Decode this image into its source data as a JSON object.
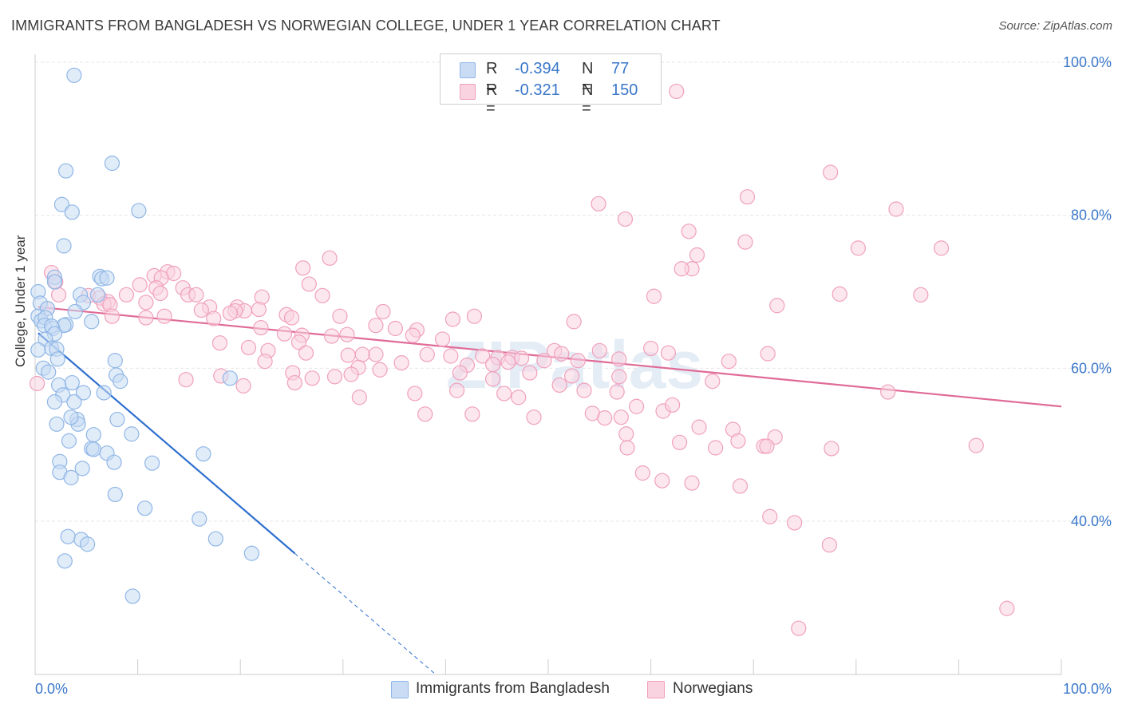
{
  "header": {
    "title": "IMMIGRANTS FROM BANGLADESH VS NORWEGIAN COLLEGE, UNDER 1 YEAR CORRELATION CHART",
    "source": "Source: ZipAtlas.com"
  },
  "legend": {
    "rows": [
      {
        "r_label": "R =",
        "r_value": "-0.394",
        "n_label": "N =",
        "n_value": "77",
        "color": "#8fb6e6",
        "fill": "#c9dcf4"
      },
      {
        "r_label": "R =",
        "r_value": "-0.321",
        "n_label": "N =",
        "n_value": "150",
        "color": "#f0a0bc",
        "fill": "#f9d3e0"
      }
    ],
    "bottom": [
      {
        "label": "Immigrants from Bangladesh",
        "color": "#8fb6e6",
        "fill": "#c9dcf4"
      },
      {
        "label": "Norwegians",
        "color": "#f0a0bc",
        "fill": "#f9d3e0"
      }
    ]
  },
  "watermark": "ZIPatlas",
  "chart_data": {
    "type": "scatter",
    "title": "IMMIGRANTS FROM BANGLADESH VS NORWEGIAN COLLEGE, UNDER 1 YEAR CORRELATION CHART",
    "xlabel": "",
    "ylabel": "College, Under 1 year",
    "xlim": [
      0,
      100
    ],
    "ylim": [
      20,
      100
    ],
    "x_ticks": [
      "0.0%",
      "100.0%"
    ],
    "y_ticks": [
      "100.0%",
      "80.0%",
      "60.0%",
      "40.0%"
    ],
    "y_tick_values": [
      100,
      80,
      60,
      40
    ],
    "grid": true,
    "legend_position": "top-center",
    "series": [
      {
        "name": "Immigrants from Bangladesh",
        "stroke": "#8fb6e6",
        "fill": "#c9dcf4",
        "line_color": "#2e6fd0",
        "trend": {
          "x0": 0.3,
          "y0": 64.6,
          "x1": 25.3,
          "y1": 35.8,
          "dash_x1": 39.0,
          "dash_y1": 20.0
        },
        "points": [
          [
            3.8,
            98.3
          ],
          [
            3.0,
            85.8
          ],
          [
            7.5,
            86.8
          ],
          [
            2.6,
            81.4
          ],
          [
            3.6,
            80.4
          ],
          [
            10.1,
            80.6
          ],
          [
            2.8,
            76.0
          ],
          [
            6.3,
            72.0
          ],
          [
            6.5,
            71.7
          ],
          [
            7.0,
            71.8
          ],
          [
            1.9,
            71.9
          ],
          [
            1.9,
            71.3
          ],
          [
            0.3,
            70.0
          ],
          [
            4.4,
            69.6
          ],
          [
            6.1,
            69.6
          ],
          [
            4.7,
            68.6
          ],
          [
            0.5,
            68.5
          ],
          [
            1.2,
            67.8
          ],
          [
            3.9,
            67.4
          ],
          [
            0.3,
            66.8
          ],
          [
            0.6,
            66.2
          ],
          [
            1.0,
            66.6
          ],
          [
            5.5,
            66.1
          ],
          [
            3.0,
            65.7
          ],
          [
            2.8,
            65.6
          ],
          [
            0.9,
            65.6
          ],
          [
            1.7,
            65.2
          ],
          [
            1.6,
            65.5
          ],
          [
            1.9,
            64.5
          ],
          [
            1.0,
            63.8
          ],
          [
            1.6,
            62.6
          ],
          [
            2.1,
            62.5
          ],
          [
            0.3,
            62.4
          ],
          [
            0.8,
            60.0
          ],
          [
            1.3,
            59.5
          ],
          [
            7.8,
            61.0
          ],
          [
            2.2,
            61.2
          ],
          [
            7.9,
            59.1
          ],
          [
            8.3,
            58.3
          ],
          [
            19.0,
            58.7
          ],
          [
            3.6,
            58.1
          ],
          [
            2.3,
            57.8
          ],
          [
            4.7,
            56.8
          ],
          [
            6.7,
            56.8
          ],
          [
            2.7,
            56.5
          ],
          [
            1.9,
            55.6
          ],
          [
            3.8,
            55.6
          ],
          [
            4.1,
            53.3
          ],
          [
            4.2,
            52.7
          ],
          [
            3.5,
            53.6
          ],
          [
            2.1,
            52.7
          ],
          [
            8.0,
            53.3
          ],
          [
            9.4,
            51.4
          ],
          [
            3.3,
            50.5
          ],
          [
            5.7,
            51.3
          ],
          [
            5.5,
            49.5
          ],
          [
            5.7,
            49.4
          ],
          [
            7.0,
            48.9
          ],
          [
            16.4,
            48.8
          ],
          [
            2.4,
            47.8
          ],
          [
            4.6,
            46.9
          ],
          [
            7.7,
            47.7
          ],
          [
            11.4,
            47.6
          ],
          [
            2.4,
            46.4
          ],
          [
            3.5,
            45.7
          ],
          [
            7.8,
            43.5
          ],
          [
            10.7,
            41.7
          ],
          [
            16.0,
            40.3
          ],
          [
            3.2,
            38.0
          ],
          [
            4.5,
            37.6
          ],
          [
            5.1,
            37.0
          ],
          [
            17.6,
            37.7
          ],
          [
            21.1,
            35.8
          ],
          [
            2.9,
            34.8
          ],
          [
            9.5,
            30.2
          ]
        ]
      },
      {
        "name": "Norwegians",
        "stroke": "#f0a0bc",
        "fill": "#f9d3e0",
        "line_color": "#e06b97",
        "trend": {
          "x0": 0.3,
          "y0": 68.0,
          "x1": 100.0,
          "y1": 55.0
        },
        "points": [
          [
            62.5,
            96.2
          ],
          [
            77.5,
            85.6
          ],
          [
            69.4,
            82.4
          ],
          [
            54.9,
            81.5
          ],
          [
            83.9,
            80.8
          ],
          [
            57.5,
            79.5
          ],
          [
            63.7,
            77.9
          ],
          [
            69.2,
            76.5
          ],
          [
            80.2,
            75.7
          ],
          [
            88.3,
            75.7
          ],
          [
            64.5,
            74.8
          ],
          [
            28.7,
            74.4
          ],
          [
            26.1,
            73.1
          ],
          [
            64.0,
            73.0
          ],
          [
            63.0,
            73.0
          ],
          [
            1.6,
            72.5
          ],
          [
            12.9,
            72.6
          ],
          [
            13.5,
            72.4
          ],
          [
            11.6,
            72.1
          ],
          [
            12.3,
            71.8
          ],
          [
            2.0,
            71.3
          ],
          [
            26.7,
            71.0
          ],
          [
            10.2,
            70.9
          ],
          [
            11.8,
            70.5
          ],
          [
            14.4,
            70.5
          ],
          [
            12.2,
            69.8
          ],
          [
            14.9,
            69.6
          ],
          [
            8.9,
            69.6
          ],
          [
            15.7,
            69.6
          ],
          [
            2.3,
            69.6
          ],
          [
            5.2,
            69.5
          ],
          [
            6.3,
            69.2
          ],
          [
            22.1,
            69.3
          ],
          [
            28.0,
            69.5
          ],
          [
            7.1,
            68.7
          ],
          [
            10.8,
            68.6
          ],
          [
            6.7,
            68.4
          ],
          [
            7.3,
            68.3
          ],
          [
            17.0,
            68.0
          ],
          [
            19.7,
            68.0
          ],
          [
            1.2,
            67.8
          ],
          [
            16.2,
            67.6
          ],
          [
            20.4,
            67.5
          ],
          [
            19.5,
            67.5
          ],
          [
            7.5,
            66.8
          ],
          [
            10.8,
            66.6
          ],
          [
            12.6,
            66.8
          ],
          [
            19.0,
            67.2
          ],
          [
            21.8,
            67.7
          ],
          [
            24.5,
            67.0
          ],
          [
            17.4,
            66.5
          ],
          [
            29.7,
            66.8
          ],
          [
            33.9,
            67.4
          ],
          [
            40.7,
            66.4
          ],
          [
            52.5,
            66.1
          ],
          [
            42.8,
            66.8
          ],
          [
            60.3,
            69.4
          ],
          [
            72.3,
            68.2
          ],
          [
            78.4,
            69.7
          ],
          [
            86.3,
            69.6
          ],
          [
            25.0,
            66.6
          ],
          [
            22.0,
            65.3
          ],
          [
            33.2,
            65.6
          ],
          [
            35.1,
            65.2
          ],
          [
            37.2,
            65.0
          ],
          [
            24.3,
            64.5
          ],
          [
            26.0,
            64.3
          ],
          [
            28.9,
            64.2
          ],
          [
            36.8,
            64.3
          ],
          [
            30.4,
            64.4
          ],
          [
            25.7,
            63.4
          ],
          [
            39.7,
            63.8
          ],
          [
            18.0,
            63.3
          ],
          [
            20.8,
            62.7
          ],
          [
            22.7,
            62.3
          ],
          [
            26.4,
            62.0
          ],
          [
            30.5,
            61.7
          ],
          [
            31.9,
            61.8
          ],
          [
            33.2,
            61.8
          ],
          [
            38.2,
            61.8
          ],
          [
            40.5,
            61.6
          ],
          [
            43.6,
            61.6
          ],
          [
            45.1,
            61.4
          ],
          [
            46.5,
            61.4
          ],
          [
            47.4,
            61.3
          ],
          [
            50.6,
            62.3
          ],
          [
            51.3,
            61.9
          ],
          [
            52.9,
            61.0
          ],
          [
            55.0,
            62.3
          ],
          [
            60.0,
            62.6
          ],
          [
            61.7,
            62.0
          ],
          [
            67.6,
            60.9
          ],
          [
            71.4,
            61.9
          ],
          [
            22.4,
            60.9
          ],
          [
            31.5,
            60.1
          ],
          [
            35.7,
            60.7
          ],
          [
            42.1,
            60.4
          ],
          [
            44.6,
            60.5
          ],
          [
            46.1,
            60.8
          ],
          [
            49.6,
            61.0
          ],
          [
            56.9,
            61.2
          ],
          [
            18.1,
            59.0
          ],
          [
            25.1,
            59.4
          ],
          [
            27.0,
            58.7
          ],
          [
            29.2,
            58.9
          ],
          [
            30.8,
            59.2
          ],
          [
            33.6,
            59.8
          ],
          [
            41.4,
            59.4
          ],
          [
            44.6,
            58.6
          ],
          [
            48.2,
            59.4
          ],
          [
            52.3,
            59.0
          ],
          [
            56.9,
            58.9
          ],
          [
            66.0,
            58.3
          ],
          [
            14.7,
            58.5
          ],
          [
            20.3,
            57.7
          ],
          [
            25.3,
            58.1
          ],
          [
            31.6,
            56.2
          ],
          [
            37.0,
            56.7
          ],
          [
            41.1,
            57.1
          ],
          [
            45.7,
            56.7
          ],
          [
            47.1,
            56.2
          ],
          [
            51.1,
            57.8
          ],
          [
            53.5,
            57.1
          ],
          [
            56.7,
            56.9
          ],
          [
            83.1,
            56.9
          ],
          [
            58.6,
            55.0
          ],
          [
            61.2,
            54.4
          ],
          [
            62.1,
            55.2
          ],
          [
            54.3,
            54.1
          ],
          [
            57.1,
            53.6
          ],
          [
            64.7,
            52.3
          ],
          [
            38.0,
            54.0
          ],
          [
            42.6,
            54.0
          ],
          [
            55.5,
            53.5
          ],
          [
            48.6,
            53.6
          ],
          [
            68.0,
            52.0
          ],
          [
            57.6,
            51.4
          ],
          [
            72.1,
            51.0
          ],
          [
            68.5,
            50.5
          ],
          [
            71.0,
            49.8
          ],
          [
            62.8,
            50.3
          ],
          [
            57.7,
            49.6
          ],
          [
            71.3,
            49.8
          ],
          [
            66.3,
            49.6
          ],
          [
            77.6,
            49.5
          ],
          [
            91.7,
            49.9
          ],
          [
            59.2,
            46.3
          ],
          [
            61.1,
            45.3
          ],
          [
            64.0,
            45.0
          ],
          [
            68.7,
            44.6
          ],
          [
            71.6,
            40.6
          ],
          [
            74.0,
            39.8
          ],
          [
            77.4,
            36.9
          ],
          [
            74.4,
            26.0
          ],
          [
            94.7,
            28.6
          ],
          [
            0.2,
            58.0
          ]
        ]
      }
    ]
  }
}
